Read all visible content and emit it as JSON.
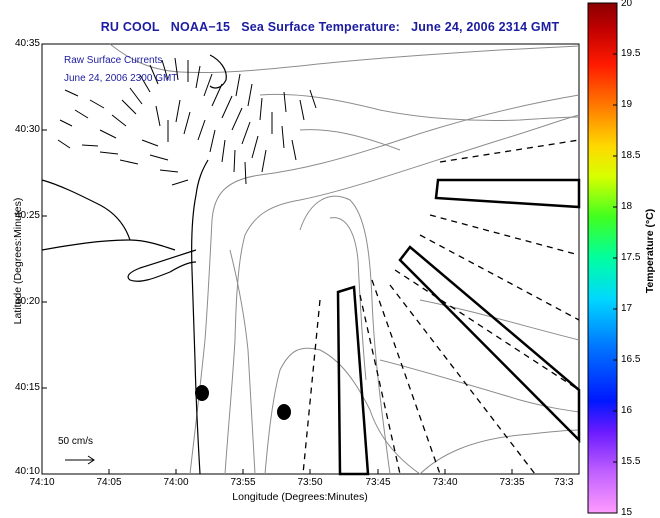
{
  "title": {
    "source": "RU COOL",
    "satellite": "NOAA−15",
    "product": "Sea Surface Temperature:",
    "datetime": "June 24, 2006 2314 GMT"
  },
  "overlay_text": {
    "line1": "Raw Surface Currents",
    "line2": "June 24, 2006 2300 GMT"
  },
  "axes": {
    "xlabel": "Longitude (Degrees:Minutes)",
    "ylabel": "Latitude (Degrees:Minutes)",
    "xticks": [
      "74:10",
      "74:05",
      "74:00",
      "73:55",
      "73:50",
      "73:45",
      "73:40",
      "73:35",
      "73:3"
    ],
    "yticks": [
      "40:35",
      "40:30",
      "40:25",
      "40:20",
      "40:15",
      "40:10"
    ]
  },
  "scale_vector": {
    "label": "50 cm/s"
  },
  "colorbar": {
    "label": "Temperature (°C)",
    "ticks": [
      "20",
      "19.5",
      "19",
      "18.5",
      "18",
      "17.5",
      "17",
      "16.5",
      "16",
      "15.5",
      "15"
    ],
    "min": 15,
    "max": 20
  },
  "colors": {
    "title": "#1c1ca0",
    "contour": "#8c8c8c",
    "coast": "#000000"
  }
}
